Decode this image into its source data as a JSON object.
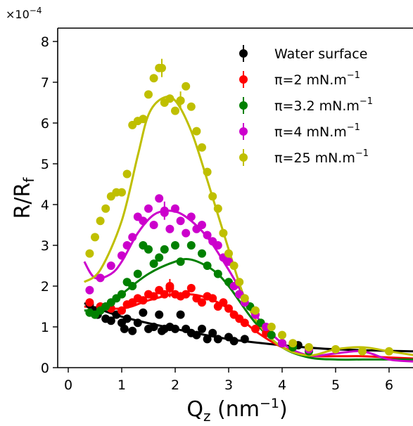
{
  "chart_data": {
    "type": "scatter",
    "multiplier": "×10",
    "multiplier_exp": "−4",
    "xlabel": {
      "base": "Q",
      "sub": "z",
      "unit": " (nm",
      "exp": "−1",
      "close": ")"
    },
    "ylabel": {
      "base": "R/R",
      "sub": "f"
    },
    "xlim": [
      -0.2,
      6.5
    ],
    "ylim": [
      0,
      8.2
    ],
    "xticks": [
      0,
      1,
      2,
      3,
      4,
      5,
      6
    ],
    "yticks": [
      0,
      1,
      2,
      3,
      4,
      5,
      6,
      7,
      8
    ],
    "grid": false,
    "legend_position": "top-right",
    "series": [
      {
        "name": "Water surface",
        "label_parts": [
          "Water surface",
          ""
        ],
        "color": "#000000",
        "points": [
          [
            0.4,
            1.55
          ],
          [
            0.5,
            1.4
          ],
          [
            0.55,
            1.3
          ],
          [
            0.7,
            1.2
          ],
          [
            0.8,
            1.15
          ],
          [
            0.9,
            1.3
          ],
          [
            1.0,
            1.1
          ],
          [
            1.05,
            0.95
          ],
          [
            1.1,
            1.2
          ],
          [
            1.2,
            0.9
          ],
          [
            1.3,
            1.1
          ],
          [
            1.4,
            1.35
          ],
          [
            1.5,
            0.95
          ],
          [
            1.6,
            1.0
          ],
          [
            1.7,
            1.3
          ],
          [
            1.75,
            0.9
          ],
          [
            1.8,
            0.95
          ],
          [
            1.9,
            1.0
          ],
          [
            2.0,
            0.95
          ],
          [
            2.1,
            1.3
          ],
          [
            2.2,
            0.95
          ],
          [
            2.3,
            0.85
          ],
          [
            2.4,
            0.8
          ],
          [
            2.5,
            0.95
          ],
          [
            2.6,
            0.7
          ],
          [
            2.7,
            0.85
          ],
          [
            2.8,
            0.7
          ],
          [
            3.0,
            0.75
          ],
          [
            3.1,
            0.65
          ],
          [
            3.3,
            0.7
          ],
          [
            4.0,
            0.6
          ],
          [
            4.3,
            0.55
          ]
        ],
        "fit": [
          [
            0.3,
            1.58
          ],
          [
            1.0,
            1.25
          ],
          [
            2.0,
            0.95
          ],
          [
            3.0,
            0.7
          ],
          [
            4.0,
            0.55
          ],
          [
            5.0,
            0.45
          ],
          [
            6.5,
            0.4
          ]
        ],
        "error_bar_points": []
      },
      {
        "name": "π=2 mN.m−1",
        "label_parts": [
          "π=2 mN.m",
          "−1"
        ],
        "color": "#ff0000",
        "points": [
          [
            0.4,
            1.6
          ],
          [
            0.6,
            1.5
          ],
          [
            0.8,
            1.45
          ],
          [
            1.0,
            1.4
          ],
          [
            1.1,
            1.55
          ],
          [
            1.2,
            1.6
          ],
          [
            1.3,
            1.7
          ],
          [
            1.4,
            1.65
          ],
          [
            1.5,
            1.8
          ],
          [
            1.6,
            1.75
          ],
          [
            1.7,
            1.9
          ],
          [
            1.8,
            1.8
          ],
          [
            1.9,
            2.0
          ],
          [
            2.0,
            1.8
          ],
          [
            2.1,
            1.75
          ],
          [
            2.2,
            1.8
          ],
          [
            2.3,
            1.95
          ],
          [
            2.4,
            1.7
          ],
          [
            2.5,
            1.6
          ],
          [
            2.6,
            1.75
          ],
          [
            2.7,
            1.7
          ],
          [
            2.8,
            1.5
          ],
          [
            2.9,
            1.6
          ],
          [
            3.0,
            1.45
          ],
          [
            3.1,
            1.3
          ],
          [
            3.2,
            1.2
          ],
          [
            3.3,
            1.1
          ],
          [
            3.5,
            0.95
          ],
          [
            3.7,
            0.85
          ],
          [
            4.0,
            0.6
          ]
        ],
        "fit": [
          [
            0.3,
            1.5
          ],
          [
            1.0,
            1.45
          ],
          [
            1.5,
            1.65
          ],
          [
            2.0,
            1.8
          ],
          [
            2.5,
            1.75
          ],
          [
            3.0,
            1.45
          ],
          [
            3.5,
            0.9
          ],
          [
            4.0,
            0.5
          ],
          [
            4.5,
            0.3
          ],
          [
            5.0,
            0.28
          ],
          [
            5.5,
            0.28
          ],
          [
            6.0,
            0.25
          ],
          [
            6.5,
            0.22
          ]
        ],
        "error_bar_points": [
          [
            1.9,
            1.95
          ]
        ]
      },
      {
        "name": "π=3.2 mN.m−1",
        "label_parts": [
          "π=3.2 mN.m",
          "−1"
        ],
        "color": "#008000",
        "points": [
          [
            0.4,
            1.35
          ],
          [
            0.5,
            1.3
          ],
          [
            0.6,
            1.4
          ],
          [
            0.7,
            1.5
          ],
          [
            0.8,
            1.6
          ],
          [
            0.9,
            1.7
          ],
          [
            1.0,
            1.8
          ],
          [
            1.1,
            2.1
          ],
          [
            1.2,
            2.0
          ],
          [
            1.3,
            2.3
          ],
          [
            1.4,
            3.0
          ],
          [
            1.5,
            2.9
          ],
          [
            1.6,
            2.55
          ],
          [
            1.7,
            2.7
          ],
          [
            1.8,
            2.9
          ],
          [
            2.0,
            3.0
          ],
          [
            2.1,
            2.6
          ],
          [
            2.3,
            3.0
          ],
          [
            2.5,
            2.8
          ],
          [
            2.6,
            2.5
          ],
          [
            2.8,
            2.3
          ],
          [
            3.0,
            2.1
          ],
          [
            3.2,
            1.8
          ],
          [
            3.4,
            1.5
          ],
          [
            3.6,
            1.1
          ],
          [
            3.8,
            0.8
          ],
          [
            4.0,
            0.6
          ],
          [
            4.2,
            0.5
          ],
          [
            4.5,
            0.4
          ]
        ],
        "fit": [
          [
            0.3,
            1.4
          ],
          [
            0.7,
            1.45
          ],
          [
            1.0,
            1.8
          ],
          [
            1.5,
            2.3
          ],
          [
            2.0,
            2.6
          ],
          [
            2.3,
            2.65
          ],
          [
            2.7,
            2.4
          ],
          [
            3.0,
            2.0
          ],
          [
            3.5,
            1.1
          ],
          [
            4.0,
            0.5
          ],
          [
            4.5,
            0.25
          ],
          [
            5.0,
            0.2
          ],
          [
            5.5,
            0.2
          ],
          [
            6.0,
            0.2
          ],
          [
            6.5,
            0.2
          ]
        ],
        "error_bar_points": []
      },
      {
        "name": "π=4 mN.m−1",
        "label_parts": [
          "π=4 mN.m",
          "−1"
        ],
        "color": "#cc00cc",
        "points": [
          [
            0.4,
            1.9
          ],
          [
            0.6,
            2.2
          ],
          [
            0.8,
            2.5
          ],
          [
            1.0,
            2.75
          ],
          [
            1.1,
            3.0
          ],
          [
            1.2,
            3.2
          ],
          [
            1.3,
            3.7
          ],
          [
            1.4,
            3.6
          ],
          [
            1.5,
            3.9
          ],
          [
            1.6,
            3.5
          ],
          [
            1.7,
            4.15
          ],
          [
            1.8,
            3.8
          ],
          [
            1.9,
            3.4
          ],
          [
            2.0,
            3.9
          ],
          [
            2.1,
            3.6
          ],
          [
            2.2,
            3.3
          ],
          [
            2.3,
            3.7
          ],
          [
            2.4,
            3.4
          ],
          [
            2.5,
            3.5
          ],
          [
            2.6,
            3.25
          ],
          [
            2.7,
            3.1
          ],
          [
            2.8,
            3.0
          ],
          [
            2.9,
            2.7
          ],
          [
            3.0,
            2.6
          ],
          [
            3.1,
            2.0
          ],
          [
            3.2,
            1.8
          ],
          [
            3.3,
            1.6
          ],
          [
            3.5,
            1.3
          ],
          [
            3.7,
            1.0
          ],
          [
            4.0,
            0.6
          ],
          [
            4.5,
            0.45
          ]
        ],
        "fit": [
          [
            0.3,
            2.6
          ],
          [
            0.5,
            2.2
          ],
          [
            0.8,
            2.3
          ],
          [
            1.0,
            2.6
          ],
          [
            1.3,
            3.3
          ],
          [
            1.6,
            3.75
          ],
          [
            1.9,
            3.85
          ],
          [
            2.2,
            3.7
          ],
          [
            2.6,
            3.2
          ],
          [
            3.0,
            2.4
          ],
          [
            3.5,
            1.3
          ],
          [
            4.0,
            0.6
          ],
          [
            4.5,
            0.3
          ],
          [
            5.0,
            0.35
          ],
          [
            5.5,
            0.4
          ],
          [
            6.0,
            0.2
          ],
          [
            6.5,
            0.15
          ]
        ],
        "error_bar_points": [
          [
            1.8,
            3.85
          ]
        ]
      },
      {
        "name": "π=25 mN.m−1",
        "label_parts": [
          "π=25 mN.m",
          "−1"
        ],
        "color": "#bfbf00",
        "points": [
          [
            0.4,
            2.8
          ],
          [
            0.5,
            3.2
          ],
          [
            0.6,
            3.6
          ],
          [
            0.7,
            3.9
          ],
          [
            0.8,
            4.2
          ],
          [
            0.9,
            4.3
          ],
          [
            1.0,
            4.3
          ],
          [
            1.1,
            4.75
          ],
          [
            1.2,
            5.95
          ],
          [
            1.3,
            6.05
          ],
          [
            1.4,
            6.1
          ],
          [
            1.5,
            6.7
          ],
          [
            1.6,
            7.1
          ],
          [
            1.7,
            7.35
          ],
          [
            1.8,
            6.5
          ],
          [
            1.9,
            6.6
          ],
          [
            2.0,
            6.3
          ],
          [
            2.1,
            6.55
          ],
          [
            2.2,
            6.9
          ],
          [
            2.3,
            6.4
          ],
          [
            2.4,
            5.8
          ],
          [
            2.5,
            5.4
          ],
          [
            2.6,
            4.8
          ],
          [
            2.7,
            4.2
          ],
          [
            2.8,
            3.9
          ],
          [
            2.9,
            3.3
          ],
          [
            3.0,
            2.8
          ],
          [
            3.1,
            2.5
          ],
          [
            3.2,
            2.1
          ],
          [
            3.3,
            1.7
          ],
          [
            3.5,
            1.4
          ],
          [
            3.8,
            1.0
          ],
          [
            4.0,
            0.8
          ],
          [
            4.2,
            0.6
          ],
          [
            4.5,
            0.5
          ],
          [
            5.0,
            0.45
          ],
          [
            5.5,
            0.4
          ],
          [
            6.0,
            0.4
          ]
        ],
        "fit": [
          [
            0.3,
            2.1
          ],
          [
            0.6,
            2.4
          ],
          [
            1.0,
            3.6
          ],
          [
            1.3,
            5.2
          ],
          [
            1.5,
            6.2
          ],
          [
            1.75,
            6.6
          ],
          [
            2.0,
            6.55
          ],
          [
            2.3,
            5.8
          ],
          [
            2.6,
            4.6
          ],
          [
            3.0,
            2.9
          ],
          [
            3.3,
            1.7
          ],
          [
            3.6,
            1.0
          ],
          [
            4.0,
            0.5
          ],
          [
            4.5,
            0.3
          ],
          [
            5.0,
            0.45
          ],
          [
            5.5,
            0.5
          ],
          [
            6.0,
            0.4
          ],
          [
            6.5,
            0.3
          ]
        ],
        "error_bar_points": [
          [
            1.75,
            7.35
          ],
          [
            2.1,
            6.55
          ]
        ]
      }
    ]
  }
}
